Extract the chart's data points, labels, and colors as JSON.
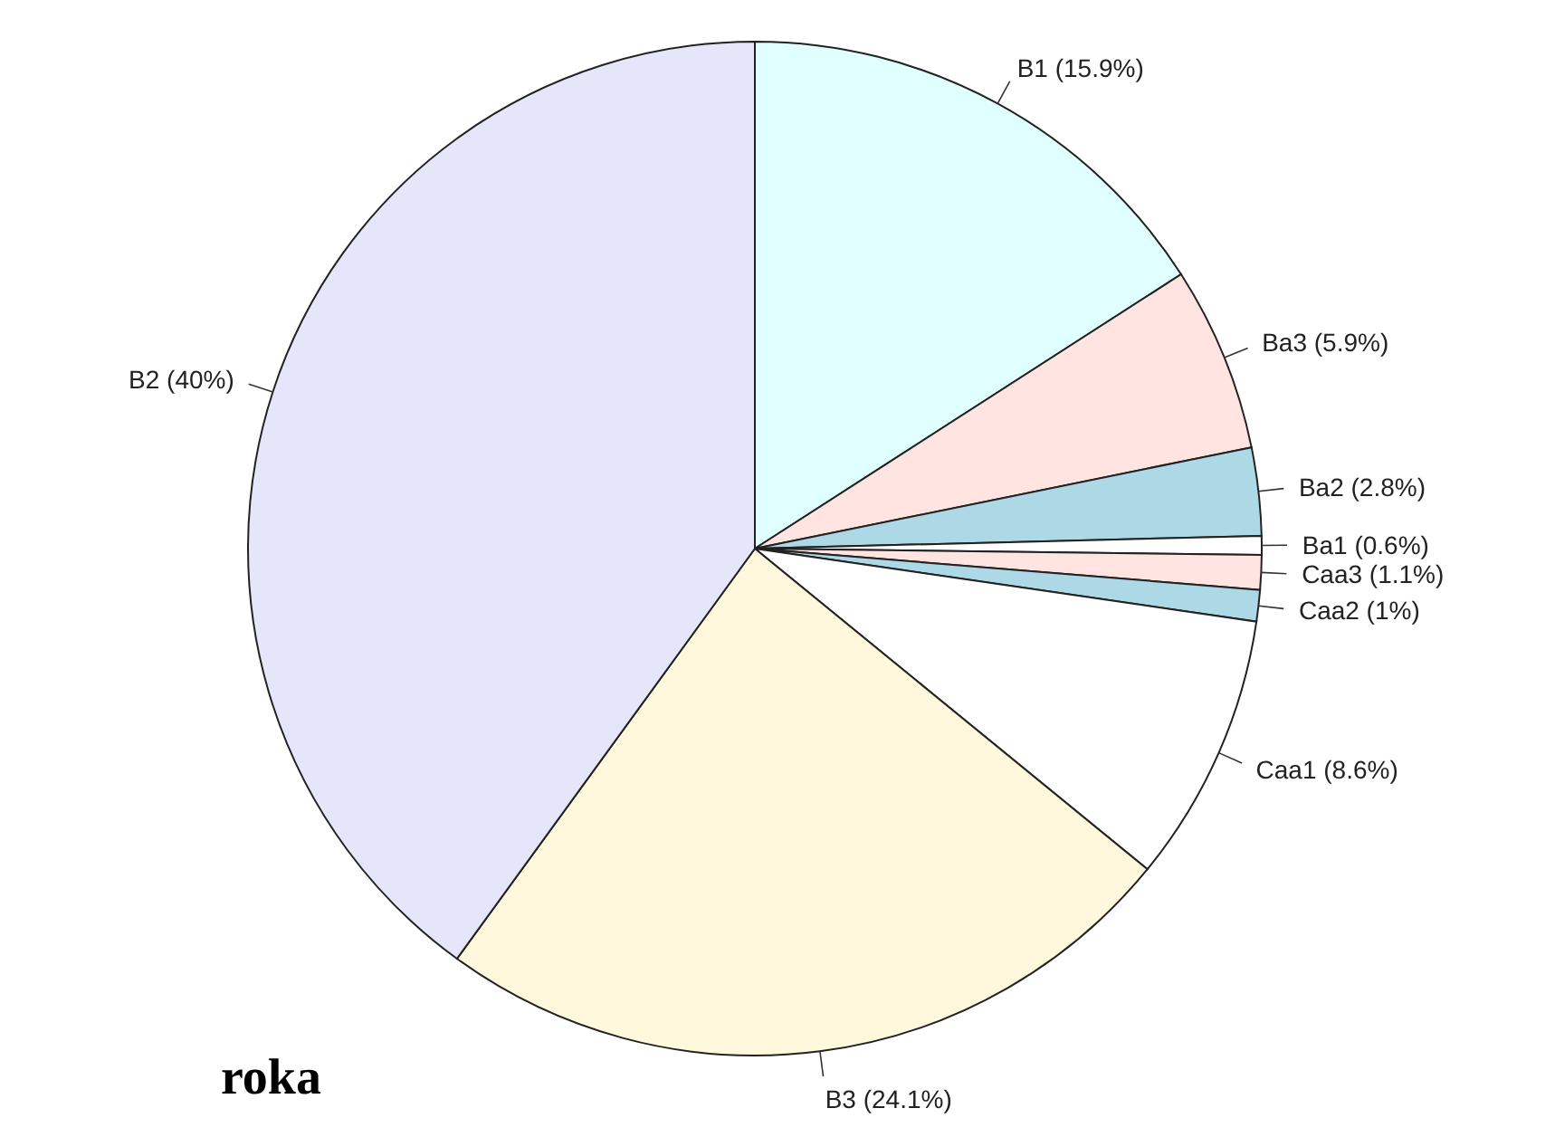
{
  "chart_data": {
    "type": "pie",
    "categories": [
      "B1 (15.9%)",
      "Ba3 (5.9%)",
      "Ba2 (2.8%)",
      "Ba1 (0.6%)",
      "Caa3 (1.1%)",
      "Caa2 (1%)",
      "Caa1 (8.6%)",
      "B3 (24.1%)",
      "B2 (40%)"
    ],
    "values": [
      15.9,
      5.9,
      2.8,
      0.6,
      1.1,
      1,
      8.6,
      24.1,
      40
    ],
    "colors": [
      "#e0ffff",
      "#ffe4e1",
      "#add8e6",
      "#ffffff",
      "#ffe4e1",
      "#add8e6",
      "#ffffff",
      "#fff8dc",
      "#e6e6fa"
    ],
    "annotations": [
      "roka"
    ]
  }
}
